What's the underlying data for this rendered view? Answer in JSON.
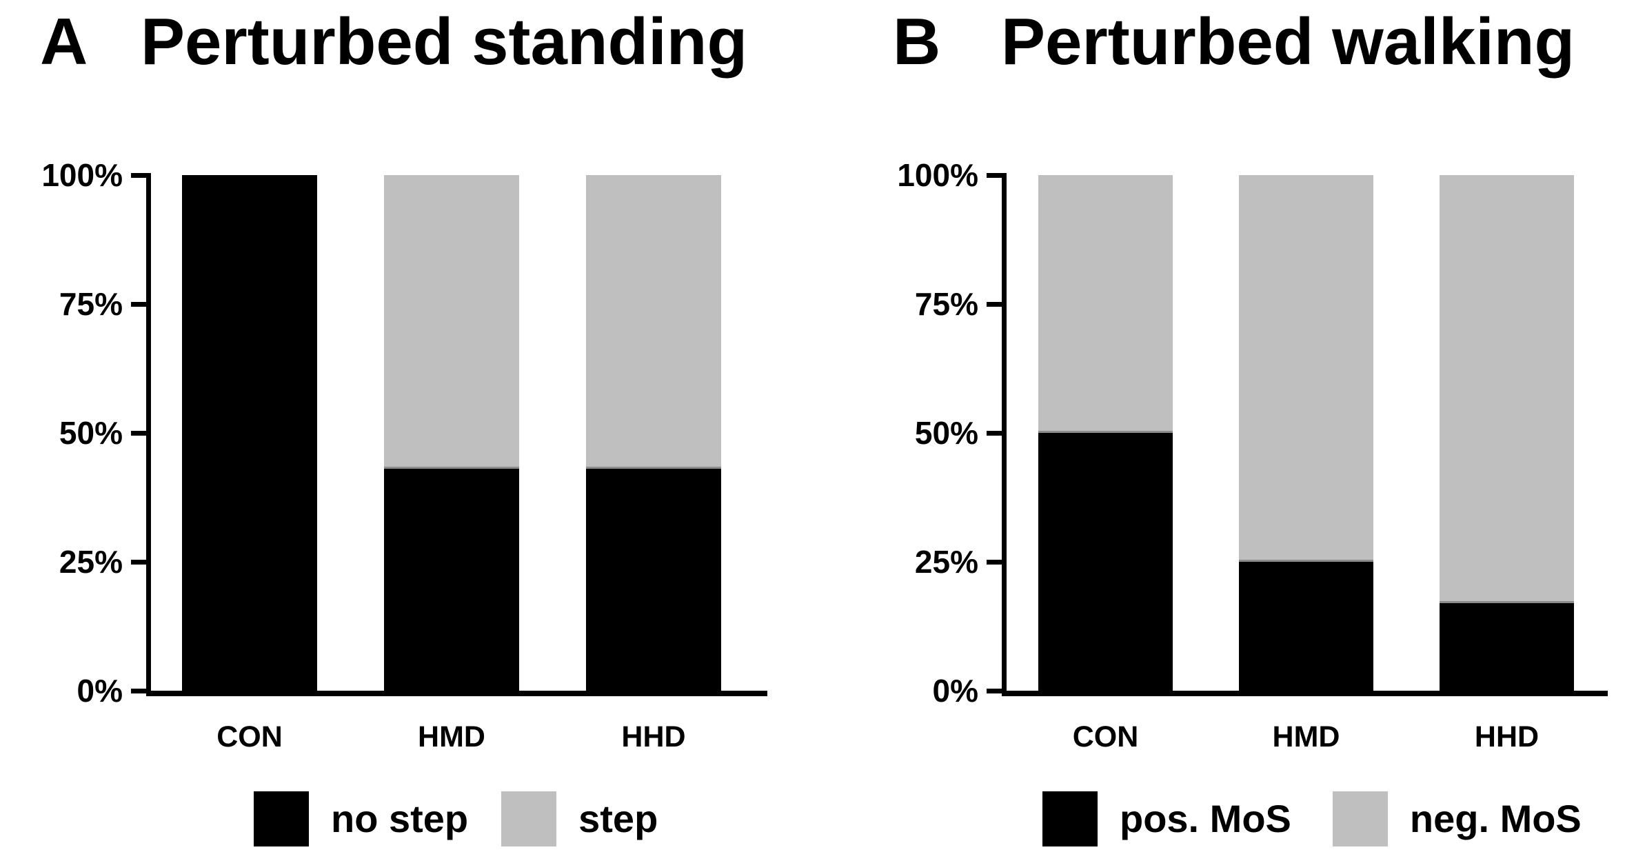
{
  "figure": {
    "panels": [
      {
        "letter": "A",
        "title": "Perturbed standing",
        "categories": [
          "CON",
          "HMD",
          "HHD"
        ],
        "y_tick_labels": [
          "100%",
          "75%",
          "50%",
          "25%",
          "0%"
        ],
        "legend": [
          {
            "label": "no step",
            "color": "#000000"
          },
          {
            "label": "step",
            "color": "#bfbfbf"
          }
        ]
      },
      {
        "letter": "B",
        "title": "Perturbed walking",
        "categories": [
          "CON",
          "HMD",
          "HHD"
        ],
        "y_tick_labels": [
          "100%",
          "75%",
          "50%",
          "25%",
          "0%"
        ],
        "legend": [
          {
            "label": "pos. MoS",
            "color": "#000000"
          },
          {
            "label": "neg. MoS",
            "color": "#bfbfbf"
          }
        ]
      }
    ]
  },
  "chart_data": [
    {
      "type": "bar",
      "stacked": true,
      "panel": "A",
      "title": "Perturbed standing",
      "categories": [
        "CON",
        "HMD",
        "HHD"
      ],
      "series": [
        {
          "name": "no step",
          "color": "#000000",
          "values": [
            100,
            43,
            43
          ]
        },
        {
          "name": "step",
          "color": "#bfbfbf",
          "values": [
            0,
            57,
            57
          ]
        }
      ],
      "value_unit": "percent",
      "ylim": [
        0,
        100
      ],
      "yticklabels_top_down": [
        "100%",
        "75%",
        "50%",
        "25%",
        "0%"
      ],
      "grid": false,
      "legend_position": "bottom"
    },
    {
      "type": "bar",
      "stacked": true,
      "panel": "B",
      "title": "Perturbed walking",
      "categories": [
        "CON",
        "HMD",
        "HHD"
      ],
      "series": [
        {
          "name": "pos. MoS",
          "color": "#000000",
          "values": [
            50,
            25,
            17
          ]
        },
        {
          "name": "neg. MoS",
          "color": "#bfbfbf",
          "values": [
            50,
            75,
            83
          ]
        }
      ],
      "value_unit": "percent",
      "ylim": [
        0,
        100
      ],
      "yticklabels_top_down": [
        "100%",
        "75%",
        "50%",
        "25%",
        "0%"
      ],
      "grid": false,
      "legend_position": "bottom"
    }
  ],
  "colors": {
    "black": "#000000",
    "gray": "#bfbfbf",
    "segment_divider": "#8c8c8c"
  }
}
